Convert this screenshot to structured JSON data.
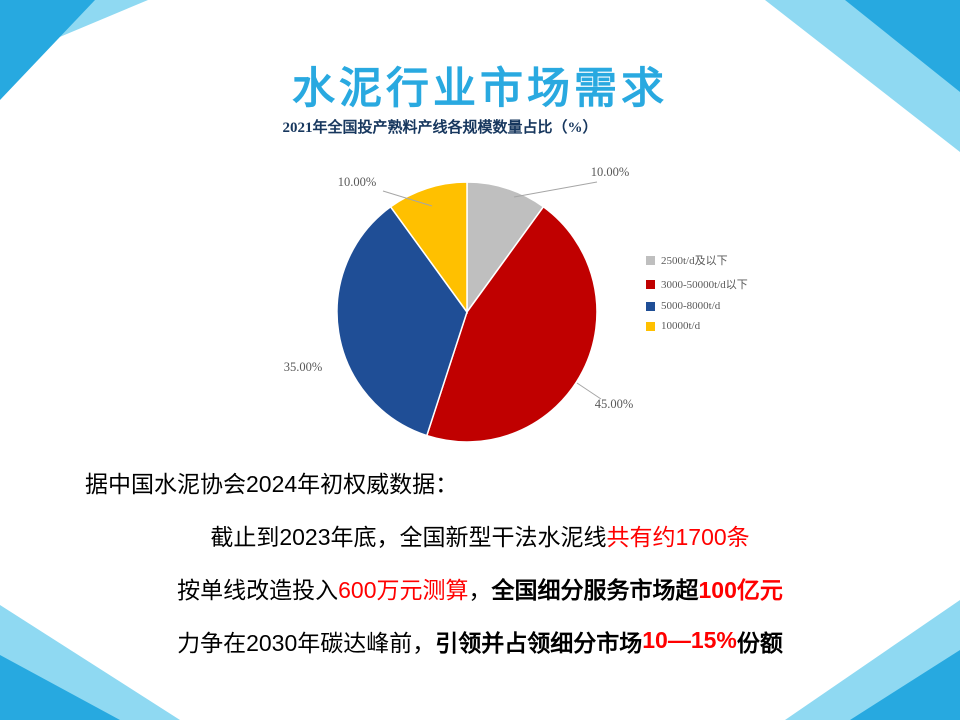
{
  "slide": {
    "title": "水泥行业市场需求"
  },
  "chart_data": {
    "type": "pie",
    "title": "2021年全国投产熟料产线各规模数量占比（%）",
    "labels": [
      "2500t/d及以下",
      "3000-50000t/d以下",
      "5000-8000t/d",
      "10000t/d"
    ],
    "values": [
      10,
      45,
      35,
      10
    ],
    "value_labels": [
      "10.00%",
      "45.00%",
      "35.00%",
      "10.00%"
    ],
    "colors": [
      "#BFBFBF",
      "#C00000",
      "#1F4E96",
      "#FFC000"
    ],
    "start_angle_deg": -90,
    "direction": "clockwise",
    "legend_position": "right"
  },
  "body": {
    "lines": [
      {
        "align": "left",
        "segments": [
          {
            "text": "据中国水泥协会2024年初权威数据：",
            "color": "#000000",
            "bold": false
          }
        ]
      },
      {
        "align": "center",
        "segments": [
          {
            "text": "截止到2023年底，全国新型干法水泥线",
            "color": "#000000",
            "bold": false
          },
          {
            "text": "共有约1700条",
            "color": "#FF0000",
            "bold": false
          }
        ]
      },
      {
        "align": "center",
        "segments": [
          {
            "text": "按单线改造投入",
            "color": "#000000",
            "bold": false
          },
          {
            "text": "600万元测算",
            "color": "#FF0000",
            "bold": false
          },
          {
            "text": "，",
            "color": "#000000",
            "bold": false
          },
          {
            "text": "全国细分服务市场超",
            "color": "#000000",
            "bold": true
          },
          {
            "text": "100亿元",
            "color": "#FF0000",
            "bold": true
          }
        ]
      },
      {
        "align": "center",
        "segments": [
          {
            "text": "力争在2030年碳达峰前，",
            "color": "#000000",
            "bold": false
          },
          {
            "text": "引领并占领细分市场",
            "color": "#000000",
            "bold": true
          },
          {
            "text": "10—15%",
            "color": "#FF0000",
            "bold": true
          },
          {
            "text": "份额",
            "color": "#000000",
            "bold": true
          }
        ]
      }
    ]
  },
  "theme": {
    "accent_cyan": "#27A9E0",
    "accent_light": "#8FD9F2",
    "title_color": "#29A9E0",
    "chart_title_color": "#17375E",
    "highlight_red": "#FF0000"
  }
}
